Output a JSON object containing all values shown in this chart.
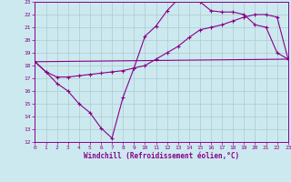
{
  "background_color": "#cde9f0",
  "grid_color": "#aacccc",
  "line_color": "#880088",
  "xlabel": "Windchill (Refroidissement éolien,°C)",
  "xlim": [
    0,
    23
  ],
  "ylim": [
    12,
    23
  ],
  "xticks": [
    0,
    1,
    2,
    3,
    4,
    5,
    6,
    7,
    8,
    9,
    10,
    11,
    12,
    13,
    14,
    15,
    16,
    17,
    18,
    19,
    20,
    21,
    22,
    23
  ],
  "yticks": [
    12,
    13,
    14,
    15,
    16,
    17,
    18,
    19,
    20,
    21,
    22,
    23
  ],
  "curve1_x": [
    0,
    1,
    2,
    3,
    4,
    5,
    6,
    7,
    8,
    9,
    10,
    11,
    12,
    13,
    14,
    15,
    16,
    17,
    18,
    19,
    20,
    21,
    22,
    23
  ],
  "curve1_y": [
    18.3,
    17.5,
    16.6,
    16.0,
    15.0,
    14.3,
    13.1,
    12.3,
    15.5,
    17.8,
    20.3,
    21.1,
    22.3,
    23.2,
    23.3,
    23.0,
    22.3,
    22.2,
    22.2,
    22.0,
    21.2,
    21.0,
    19.0,
    18.5
  ],
  "curve2_x": [
    0,
    1,
    2,
    3,
    4,
    5,
    6,
    7,
    8,
    9,
    10,
    11,
    12,
    13,
    14,
    15,
    16,
    17,
    18,
    19,
    20,
    21,
    22,
    23
  ],
  "curve2_y": [
    18.3,
    17.5,
    17.1,
    17.1,
    17.2,
    17.3,
    17.4,
    17.5,
    17.6,
    17.8,
    18.0,
    18.5,
    19.0,
    19.5,
    20.2,
    20.8,
    21.0,
    21.2,
    21.5,
    21.8,
    22.0,
    22.0,
    21.8,
    18.5
  ],
  "line3_x": [
    0,
    23
  ],
  "line3_y": [
    18.3,
    18.5
  ]
}
